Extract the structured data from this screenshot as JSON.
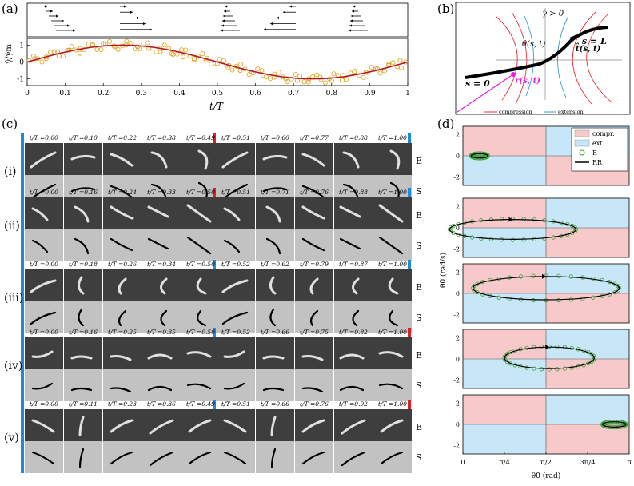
{
  "panel_labels": {
    "a": "(a)",
    "b": "(b)",
    "c": "(c)",
    "d": "(d)"
  },
  "panel_a": {
    "xlabel": "t/T",
    "ylabel": "γ̇/γ̇m",
    "xticks": [
      "0",
      "0.1",
      "0.2",
      "0.3",
      "0.4",
      "0.5",
      "0.6",
      "0.7",
      "0.8",
      "0.9",
      "1"
    ],
    "yticks": [
      "1",
      "0",
      "-1"
    ],
    "colors": {
      "points": "#e3a21a",
      "curve": "#b2182b"
    },
    "chart_data": {
      "type": "scatter",
      "xlabel": "t/T",
      "ylabel": "γ̇/γ̇m",
      "xlim": [
        0,
        1
      ],
      "ylim": [
        -1.4,
        1.4
      ],
      "series": [
        {
          "kind": "line",
          "x": [
            0,
            0.05,
            0.1,
            0.15,
            0.2,
            0.25,
            0.3,
            0.35,
            0.4,
            0.45,
            0.5,
            0.55,
            0.6,
            0.65,
            0.7,
            0.75,
            0.8,
            0.85,
            0.9,
            0.95,
            1.0
          ],
          "y": [
            0,
            0.31,
            0.59,
            0.81,
            0.95,
            1.0,
            0.95,
            0.81,
            0.59,
            0.31,
            0,
            -0.31,
            -0.59,
            -0.81,
            -0.95,
            -1.0,
            -0.95,
            -0.81,
            -0.59,
            -0.31,
            0
          ]
        },
        {
          "kind": "points",
          "x": [
            0.02,
            0.05,
            0.08,
            0.11,
            0.14,
            0.17,
            0.2,
            0.23,
            0.26,
            0.29,
            0.32,
            0.35,
            0.38,
            0.41,
            0.44,
            0.47,
            0.5,
            0.53,
            0.56,
            0.59,
            0.62,
            0.65,
            0.68,
            0.71,
            0.74,
            0.77,
            0.8,
            0.83,
            0.86,
            0.89,
            0.92,
            0.95,
            0.98
          ],
          "y": [
            0.2,
            0.3,
            0.6,
            0.7,
            0.8,
            1.0,
            1.1,
            0.9,
            1.0,
            0.9,
            0.8,
            0.6,
            0.5,
            0.3,
            0.2,
            0.1,
            -0.1,
            -0.2,
            -0.5,
            -0.6,
            -0.8,
            -0.9,
            -1.0,
            -1.1,
            -1.0,
            -0.9,
            -1.1,
            -0.8,
            -0.6,
            -0.6,
            -0.4,
            -0.2,
            0.1
          ]
        }
      ]
    }
  },
  "panel_b": {
    "labels": {
      "gamma": "γ̇ > 0",
      "sL": "s = L",
      "s0": "s = 0",
      "theta": "θ(s, t)",
      "that": "t̂(s, t)",
      "r": "r(s, t)"
    },
    "legend": {
      "compression": "compression",
      "extension": "extension"
    },
    "colors": {
      "compression": "#e8303a",
      "extension": "#3a9ad9",
      "r": "#e020e0"
    }
  },
  "panel_c": {
    "rows": [
      {
        "id": "(i)",
        "left": [
          "0.00",
          "0.10",
          "0.22",
          "0.38",
          "0.49"
        ],
        "right": [
          "0.51",
          "0.60",
          "0.77",
          "0.88",
          "1.00"
        ],
        "lbar": "#1f8ad8",
        "mbar": "#e02020",
        "rbar": "#1f8ad8"
      },
      {
        "id": "(ii)",
        "left": [
          "0.00",
          "0.16",
          "0.24",
          "0.33",
          "0.50"
        ],
        "right": [
          "0.51",
          "0.71",
          "0.76",
          "0.88",
          "1.00"
        ],
        "lbar": "#1f8ad8",
        "mbar": "#e02020",
        "rbar": "#1f8ad8"
      },
      {
        "id": "(iii)",
        "left": [
          "0.00",
          "0.18",
          "0.26",
          "0.34",
          "0.50"
        ],
        "right": [
          "0.52",
          "0.62",
          "0.79",
          "0.87",
          "1.00"
        ],
        "lbar": "#1f8ad8",
        "mbar": "#1f8ad8",
        "rbar": "#1f8ad8"
      },
      {
        "id": "(iv)",
        "left": [
          "0.00",
          "0.16",
          "0.25",
          "0.35",
          "0.50"
        ],
        "right": [
          "0.52",
          "0.66",
          "0.75",
          "0.82",
          "1.00"
        ],
        "lbar": "#1f8ad8",
        "mbar": "#1f8ad8",
        "rbar": "#e02020"
      },
      {
        "id": "(v)",
        "left": [
          "0.00",
          "0.11",
          "0.23",
          "0.36",
          "0.49"
        ],
        "right": [
          "0.51",
          "0.66",
          "0.76",
          "0.92",
          "1.00"
        ],
        "lbar": "#1f8ad8",
        "mbar": "#1f8ad8",
        "rbar": "#e02020"
      }
    ],
    "time_prefix": "t/T =",
    "side_labels": {
      "E": "E",
      "S": "S"
    }
  },
  "panel_d": {
    "ylabel": "θ̇0 (rad/s)",
    "xlabel": "θ0 (rad)",
    "yticks": [
      "2",
      "0",
      "-2"
    ],
    "xticks": [
      "0",
      "π/4",
      "π/2",
      "3π/4",
      "π"
    ],
    "legend": {
      "compr": "compr.",
      "ext": "ext.",
      "E": "E",
      "RR": "RR"
    },
    "colors": {
      "compr": "#f8c9cb",
      "ext": "#c7e6f7",
      "E": "#3aa03a",
      "RR": "#000000"
    }
  }
}
